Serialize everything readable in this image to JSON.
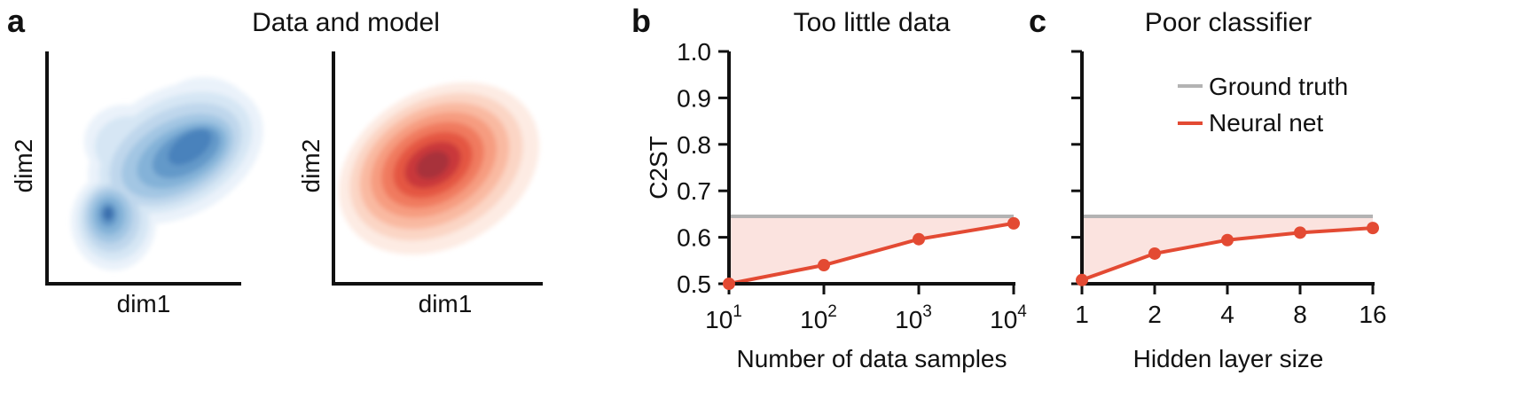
{
  "panel_a": {
    "letter": "a",
    "title": "Data and model",
    "left_plot": {
      "xlabel": "dim1",
      "ylabel": "dim2",
      "color": "#3a78b5",
      "description_name": "data-density"
    },
    "right_plot": {
      "xlabel": "dim1",
      "ylabel": "dim2",
      "color": "#d93b2b",
      "description_name": "model-density"
    }
  },
  "legend": {
    "items": [
      {
        "label": "Ground truth",
        "color": "#b3b3b3"
      },
      {
        "label": "Neural net",
        "color": "#e34a33"
      }
    ]
  },
  "chart_data": [
    {
      "panel": "b",
      "type": "line",
      "title": "Too little data",
      "xlabel": "Number of data samples",
      "ylabel": "C2ST",
      "xscale": "log10",
      "x": [
        10,
        100,
        1000,
        10000
      ],
      "x_tick_bases": [
        "10",
        "10",
        "10",
        "10"
      ],
      "x_tick_exponents": [
        "1",
        "2",
        "3",
        "4"
      ],
      "ylim": [
        0.5,
        1.0
      ],
      "y_ticks": [
        "0.5",
        "0.6",
        "0.7",
        "0.8",
        "0.9",
        "1.0"
      ],
      "series": [
        {
          "name": "Ground truth",
          "values": [
            0.645,
            0.645,
            0.645,
            0.645
          ],
          "color": "#b3b3b3"
        },
        {
          "name": "Neural net",
          "values": [
            0.5,
            0.54,
            0.596,
            0.63
          ],
          "color": "#e34a33"
        }
      ],
      "fill_between": [
        "Neural net",
        "Ground truth"
      ],
      "fill_color": "#fbe3df"
    },
    {
      "panel": "c",
      "type": "line",
      "title": "Poor classifier",
      "xlabel": "Hidden layer size",
      "ylabel": "",
      "xscale": "log2",
      "x": [
        1,
        2,
        4,
        8,
        16
      ],
      "x_tick_labels": [
        "1",
        "2",
        "4",
        "8",
        "16"
      ],
      "ylim": [
        0.5,
        1.0
      ],
      "series": [
        {
          "name": "Ground truth",
          "values": [
            0.645,
            0.645,
            0.645,
            0.645,
            0.645
          ],
          "color": "#b3b3b3"
        },
        {
          "name": "Neural net",
          "values": [
            0.508,
            0.565,
            0.594,
            0.61,
            0.62
          ],
          "color": "#e34a33"
        }
      ],
      "fill_between": [
        "Neural net",
        "Ground truth"
      ],
      "fill_color": "#fbe3df"
    }
  ]
}
